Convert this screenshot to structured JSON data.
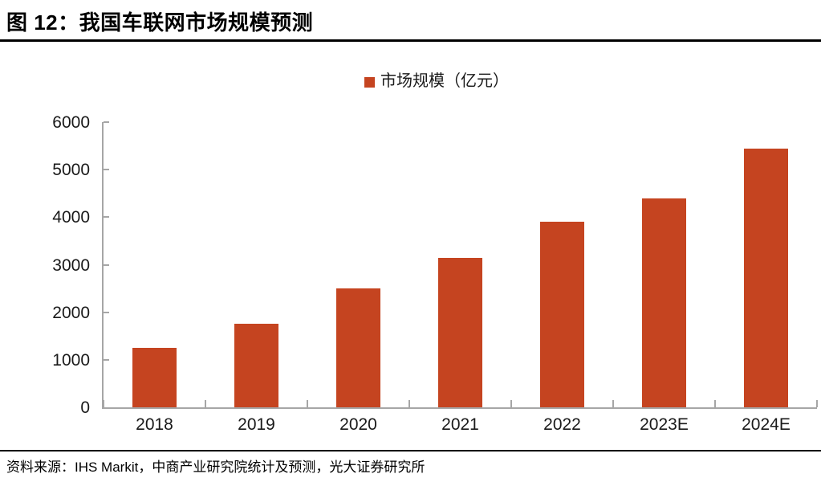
{
  "figure": {
    "title": "图 12：我国车联网市场规模预测",
    "source": "资料来源：IHS Markit，中商产业研究院统计及预测，光大证券研究所"
  },
  "chart_data": {
    "type": "bar",
    "title": "图 12：我国车联网市场规模预测",
    "categories": [
      "2018",
      "2019",
      "2020",
      "2021",
      "2022",
      "2023E",
      "2024E"
    ],
    "series": [
      {
        "name": "市场规模（亿元）",
        "values": [
          1250,
          1750,
          2500,
          3150,
          3900,
          4400,
          5450
        ]
      }
    ],
    "xlabel": "",
    "ylabel": "",
    "ylim": [
      0,
      6000
    ],
    "ytick_interval": 1000,
    "grid": false,
    "legend": [
      "市场规模（亿元）"
    ],
    "legend_position": "top-center",
    "colors": {
      "bar": "#C54420",
      "axis": "#A6A6A6",
      "tick_text": "#1A1A1A",
      "title_text": "#000000",
      "rule": "#000000"
    }
  }
}
